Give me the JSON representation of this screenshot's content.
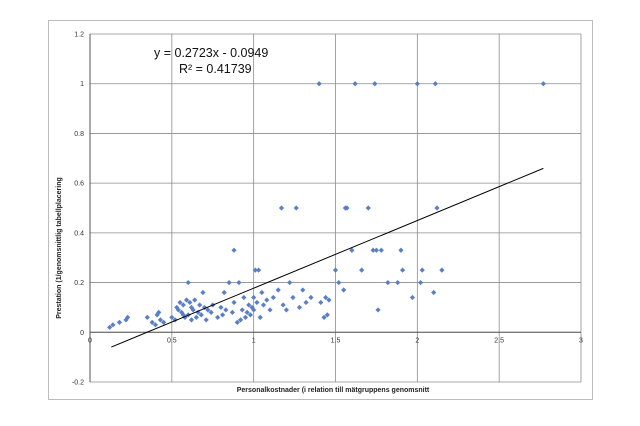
{
  "chart_data": {
    "type": "scatter",
    "xlabel": "Personalkostnader (i relation till mätgruppens genomsnitt",
    "ylabel": "Prestation (1/genomsnittlig tabellplacering",
    "xlim": [
      0,
      3
    ],
    "ylim": [
      -0.2,
      1.2
    ],
    "xticks": [
      0,
      0.5,
      1,
      1.5,
      2,
      2.5,
      3
    ],
    "xtick_labels": [
      "0",
      "0.5",
      "1",
      "1.5",
      "2",
      "2.5",
      "3"
    ],
    "yticks": [
      -0.2,
      0,
      0.2,
      0.4,
      0.6,
      0.8,
      1,
      1.2
    ],
    "ytick_labels": [
      "-0.2",
      "0",
      "0.2",
      "0.4",
      "0.6",
      "0.8",
      "1",
      "1.2"
    ],
    "grid": "vertical and horizontal major gridlines",
    "marker_color": "#5b7fc7",
    "trendline": {
      "slope": 0.2723,
      "intercept": -0.0949,
      "x_range": [
        0.13,
        2.77
      ],
      "equation_label": "y = 0.2723x - 0.0949",
      "r2_label": "R² = 0.41739",
      "color": "#000000"
    },
    "points": [
      [
        0.12,
        0.02
      ],
      [
        0.14,
        0.03
      ],
      [
        0.18,
        0.04
      ],
      [
        0.22,
        0.05
      ],
      [
        0.23,
        0.06
      ],
      [
        0.35,
        0.06
      ],
      [
        0.38,
        0.04
      ],
      [
        0.4,
        0.03
      ],
      [
        0.41,
        0.07
      ],
      [
        0.42,
        0.08
      ],
      [
        0.43,
        0.05
      ],
      [
        0.45,
        0.04
      ],
      [
        0.5,
        0.06
      ],
      [
        0.52,
        0.05
      ],
      [
        0.53,
        0.1
      ],
      [
        0.54,
        0.09
      ],
      [
        0.55,
        0.12
      ],
      [
        0.56,
        0.08
      ],
      [
        0.57,
        0.07
      ],
      [
        0.57,
        0.11
      ],
      [
        0.58,
        0.06
      ],
      [
        0.59,
        0.13
      ],
      [
        0.6,
        0.07
      ],
      [
        0.6,
        0.2
      ],
      [
        0.61,
        0.12
      ],
      [
        0.62,
        0.1
      ],
      [
        0.62,
        0.05
      ],
      [
        0.63,
        0.09
      ],
      [
        0.64,
        0.13
      ],
      [
        0.65,
        0.06
      ],
      [
        0.66,
        0.08
      ],
      [
        0.67,
        0.11
      ],
      [
        0.68,
        0.07
      ],
      [
        0.69,
        0.16
      ],
      [
        0.7,
        0.1
      ],
      [
        0.71,
        0.05
      ],
      [
        0.72,
        0.09
      ],
      [
        0.74,
        0.08
      ],
      [
        0.75,
        0.11
      ],
      [
        0.78,
        0.06
      ],
      [
        0.8,
        0.1
      ],
      [
        0.81,
        0.07
      ],
      [
        0.82,
        0.16
      ],
      [
        0.83,
        0.09
      ],
      [
        0.85,
        0.2
      ],
      [
        0.87,
        0.08
      ],
      [
        0.88,
        0.12
      ],
      [
        0.88,
        0.33
      ],
      [
        0.9,
        0.04
      ],
      [
        0.91,
        0.2
      ],
      [
        0.92,
        0.05
      ],
      [
        0.93,
        0.09
      ],
      [
        0.94,
        0.14
      ],
      [
        0.95,
        0.06
      ],
      [
        0.96,
        0.08
      ],
      [
        0.97,
        0.11
      ],
      [
        0.98,
        0.07
      ],
      [
        0.99,
        0.1
      ],
      [
        1.0,
        0.09
      ],
      [
        1.0,
        0.14
      ],
      [
        1.01,
        0.25
      ],
      [
        1.02,
        0.12
      ],
      [
        1.03,
        0.25
      ],
      [
        1.04,
        0.06
      ],
      [
        1.05,
        0.16
      ],
      [
        1.06,
        0.11
      ],
      [
        1.08,
        0.13
      ],
      [
        1.1,
        0.09
      ],
      [
        1.12,
        0.14
      ],
      [
        1.15,
        0.17
      ],
      [
        1.17,
        0.5
      ],
      [
        1.18,
        0.11
      ],
      [
        1.2,
        0.09
      ],
      [
        1.22,
        0.2
      ],
      [
        1.24,
        0.14
      ],
      [
        1.26,
        0.5
      ],
      [
        1.28,
        0.1
      ],
      [
        1.3,
        0.17
      ],
      [
        1.32,
        0.12
      ],
      [
        1.35,
        0.14
      ],
      [
        1.4,
        1.0
      ],
      [
        1.41,
        0.12
      ],
      [
        1.43,
        0.06
      ],
      [
        1.44,
        0.14
      ],
      [
        1.45,
        0.07
      ],
      [
        1.46,
        0.13
      ],
      [
        1.5,
        0.25
      ],
      [
        1.52,
        0.2
      ],
      [
        1.55,
        0.17
      ],
      [
        1.56,
        0.5
      ],
      [
        1.57,
        0.5
      ],
      [
        1.6,
        0.33
      ],
      [
        1.62,
        1.0
      ],
      [
        1.66,
        0.25
      ],
      [
        1.7,
        0.5
      ],
      [
        1.73,
        0.33
      ],
      [
        1.74,
        1.0
      ],
      [
        1.75,
        0.33
      ],
      [
        1.76,
        0.09
      ],
      [
        1.78,
        0.33
      ],
      [
        1.82,
        0.2
      ],
      [
        1.88,
        0.2
      ],
      [
        1.9,
        0.33
      ],
      [
        1.91,
        0.25
      ],
      [
        1.97,
        0.14
      ],
      [
        2.0,
        1.0
      ],
      [
        2.02,
        0.2
      ],
      [
        2.03,
        0.25
      ],
      [
        2.1,
        0.16
      ],
      [
        2.11,
        1.0
      ],
      [
        2.12,
        0.5
      ],
      [
        2.15,
        0.25
      ],
      [
        2.77,
        1.0
      ]
    ]
  }
}
